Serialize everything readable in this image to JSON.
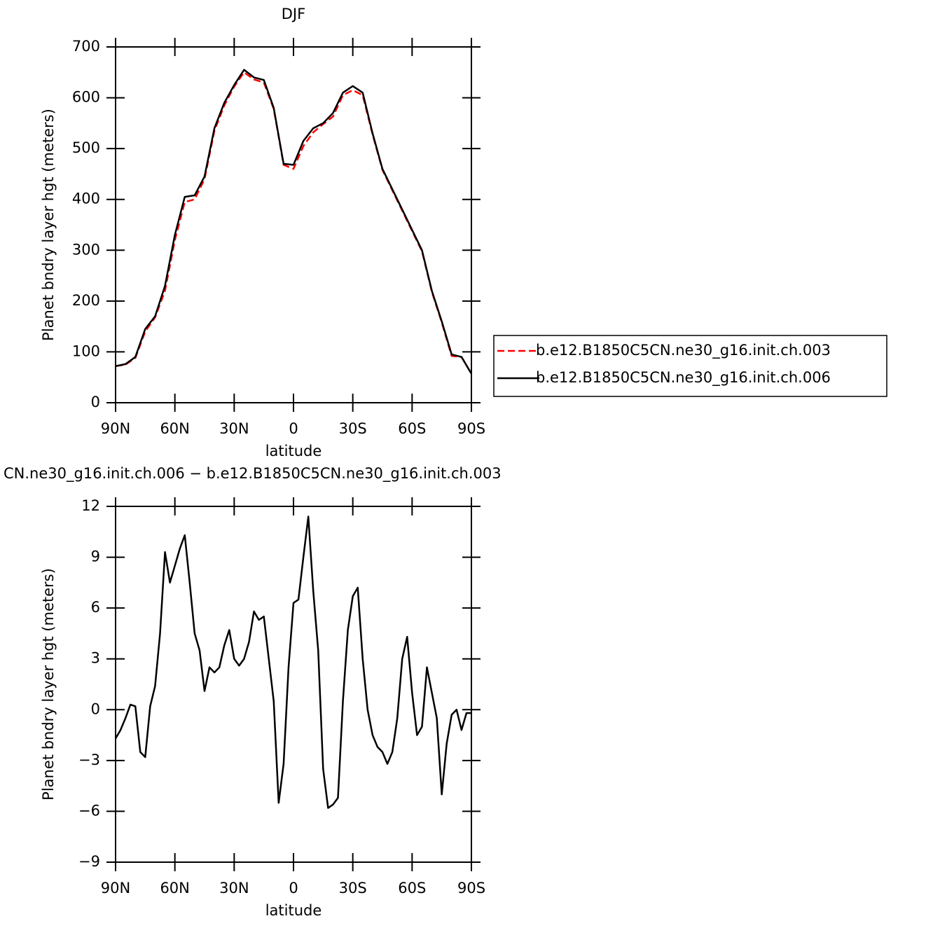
{
  "chart_data": [
    {
      "type": "line",
      "title": "DJF",
      "xlabel": "latitude",
      "ylabel": "Planet bndry layer hgt (meters)",
      "x": [
        90,
        85,
        80,
        75,
        70,
        65,
        60,
        55,
        50,
        45,
        40,
        35,
        30,
        25,
        20,
        15,
        10,
        5,
        0,
        -5,
        -10,
        -15,
        -20,
        -25,
        -30,
        -35,
        -40,
        -45,
        -50,
        -55,
        -60,
        -65,
        -70,
        -75,
        -80,
        -85,
        -90
      ],
      "xlim": [
        90,
        -90
      ],
      "xticks": [
        {
          "value": 90,
          "label": "90N"
        },
        {
          "value": 60,
          "label": "60N"
        },
        {
          "value": 30,
          "label": "30N"
        },
        0,
        {
          "value": -30,
          "label": "30S"
        },
        {
          "value": -60,
          "label": "60S"
        },
        {
          "value": -90,
          "label": "90S"
        }
      ],
      "ylim": [
        0,
        700
      ],
      "yticks": [
        0,
        100,
        200,
        300,
        400,
        500,
        600,
        700
      ],
      "legend": "outside-right",
      "series": [
        {
          "name": "b.e12.B1850C5CN.ne30_g16.init.ch.003",
          "color": "#ff0000",
          "dashed": true,
          "values": [
            72,
            75,
            88,
            140,
            168,
            220,
            320,
            395,
            400,
            440,
            535,
            585,
            622,
            650,
            636,
            630,
            578,
            468,
            460,
            505,
            532,
            548,
            563,
            605,
            615,
            605,
            528,
            458,
            418,
            378,
            338,
            298,
            218,
            158,
            92,
            90,
            57
          ]
        },
        {
          "name": "b.e12.B1850C5CN.ne30_g16.init.ch.006",
          "color": "#000000",
          "dashed": false,
          "values": [
            72,
            76,
            90,
            145,
            170,
            230,
            330,
            405,
            408,
            445,
            540,
            590,
            625,
            655,
            640,
            635,
            580,
            470,
            468,
            515,
            540,
            550,
            570,
            610,
            623,
            610,
            530,
            460,
            420,
            380,
            340,
            300,
            220,
            160,
            95,
            90,
            57
          ]
        }
      ]
    },
    {
      "type": "line",
      "title": "CN.ne30_g16.init.ch.006 − b.e12.B1850C5CN.ne30_g16.init.ch.003",
      "xlabel": "latitude",
      "ylabel": "Planet bndry layer hgt (meters)",
      "x": [
        90,
        87.5,
        85,
        82.5,
        80,
        77.5,
        75,
        72.5,
        70,
        67.5,
        65,
        62.5,
        60,
        57.5,
        55,
        52.5,
        50,
        47.5,
        45,
        42.5,
        40,
        37.5,
        35,
        32.5,
        30,
        27.5,
        25,
        22.5,
        20,
        17.5,
        15,
        12.5,
        10,
        7.5,
        5,
        2.5,
        0,
        -2.5,
        -5,
        -7.5,
        -10,
        -12.5,
        -15,
        -17.5,
        -20,
        -22.5,
        -25,
        -27.5,
        -30,
        -32.5,
        -35,
        -37.5,
        -40,
        -42.5,
        -45,
        -47.5,
        -50,
        -52.5,
        -55,
        -57.5,
        -60,
        -62.5,
        -65,
        -67.5,
        -70,
        -72.5,
        -75,
        -77.5,
        -80,
        -82.5,
        -85,
        -87.5,
        -90
      ],
      "xlim": [
        90,
        -90
      ],
      "xticks": [
        {
          "value": 90,
          "label": "90N"
        },
        {
          "value": 60,
          "label": "60N"
        },
        {
          "value": 30,
          "label": "30N"
        },
        0,
        {
          "value": -30,
          "label": "30S"
        },
        {
          "value": -60,
          "label": "60S"
        },
        {
          "value": -90,
          "label": "90S"
        }
      ],
      "ylim": [
        -9,
        12
      ],
      "yticks": [
        {
          "value": -9,
          "label": "−9"
        },
        {
          "value": -6,
          "label": "−6"
        },
        {
          "value": -3,
          "label": "−3"
        },
        0,
        3,
        6,
        9,
        12
      ],
      "series": [
        {
          "color": "#000000",
          "dashed": false,
          "values": [
            -1.7,
            -1.2,
            -0.5,
            0.3,
            0.2,
            -2.5,
            -2.8,
            0.2,
            1.4,
            4.5,
            9.3,
            7.5,
            8.5,
            9.5,
            10.3,
            7.5,
            4.5,
            3.5,
            1.1,
            2.5,
            2.2,
            2.5,
            3.8,
            4.7,
            3.0,
            2.6,
            3.0,
            4.0,
            5.8,
            5.3,
            5.5,
            3.0,
            0.5,
            -5.5,
            -3.2,
            2.5,
            6.3,
            6.5,
            9.0,
            11.4,
            7.0,
            3.5,
            -3.5,
            -5.8,
            -5.6,
            -5.2,
            0.5,
            4.7,
            6.7,
            7.2,
            3.0,
            0,
            -1.5,
            -2.2,
            -2.5,
            -3.2,
            -2.5,
            -0.5,
            3.0,
            4.3,
            1.0,
            -1.5,
            -1.0,
            2.5,
            1.0,
            -0.5,
            -5.0,
            -2.0,
            -0.3,
            0.0,
            -1.2,
            -0.2,
            -0.2
          ]
        }
      ]
    }
  ]
}
